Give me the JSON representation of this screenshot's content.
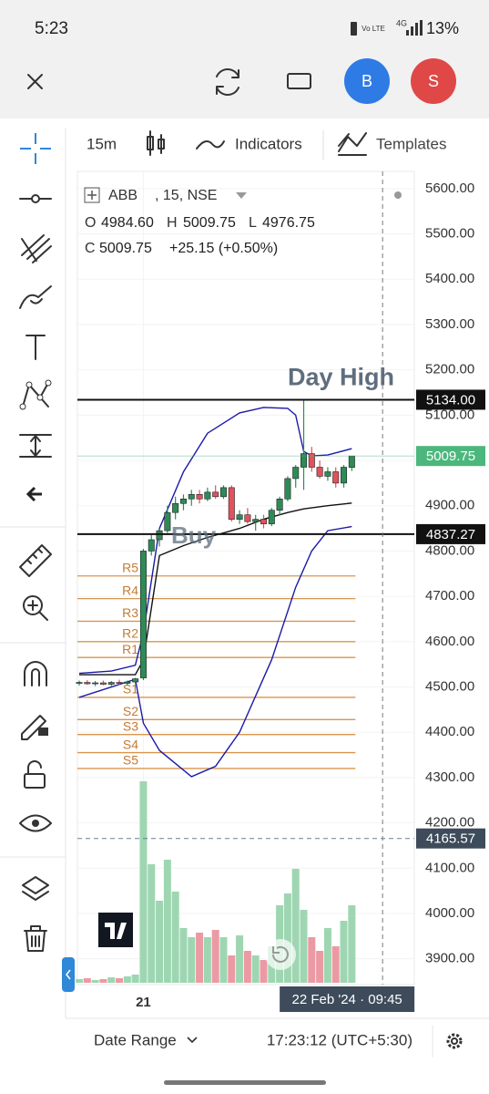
{
  "status_bar": {
    "time": "5:23",
    "volte": "Vo LTE",
    "network": "4G",
    "battery": "13%"
  },
  "top_bar": {
    "user_buttons": [
      "B",
      "S"
    ]
  },
  "toolbar": {
    "interval": "15m",
    "indicators": "Indicators",
    "templates": "Templates"
  },
  "bottom_bar": {
    "date_range": "Date Range",
    "clock": "17:23:12 (UTC+5:30)"
  },
  "chart_data": {
    "type": "candlestick",
    "symbol": "ABB",
    "interval_exchange": ", 15, NSE",
    "legend_ohlc": [
      {
        "key": "O",
        "text": "4984.60"
      },
      {
        "key": "H",
        "text": "5009.75"
      },
      {
        "key": "L",
        "text": "4976.75"
      },
      {
        "key": "C",
        "text": "5009.75"
      }
    ],
    "change": "+25.15 (+0.50%)",
    "xlim": [
      -0.23,
      41.8
    ],
    "ylim": [
      3843,
      5638
    ],
    "xticks": [
      {
        "value": 8,
        "label": "21"
      }
    ],
    "yticks": [
      {
        "value": 3900,
        "label": "3900.00"
      },
      {
        "value": 4000,
        "label": "4000.00"
      },
      {
        "value": 4100,
        "label": "4100.00"
      },
      {
        "value": 4200,
        "label": "4200.00"
      },
      {
        "value": 4300,
        "label": "4300.00"
      },
      {
        "value": 4400,
        "label": "4400.00"
      },
      {
        "value": 4500,
        "label": "4500.00"
      },
      {
        "value": 4600,
        "label": "4600.00"
      },
      {
        "value": 4700,
        "label": "4700.00"
      },
      {
        "value": 4800,
        "label": "4800.00"
      },
      {
        "value": 4900,
        "label": "4900.00"
      },
      {
        "value": 5000,
        "label": "5000.00"
      },
      {
        "value": 5100,
        "label": "5100.00"
      },
      {
        "value": 5200,
        "label": "5200.00"
      },
      {
        "value": 5300,
        "label": "5300.00"
      },
      {
        "value": 5400,
        "label": "5400.00"
      },
      {
        "value": 5500,
        "label": "5500.00"
      },
      {
        "value": 5600,
        "label": "5600.00"
      }
    ],
    "grid": true,
    "up_color": "#2e8b57",
    "down_color": "#e0525d",
    "volume_up_color": "#9ed6b2",
    "volume_down_color": "#eb9aa3",
    "candles": {
      "open": [
        4508,
        4510,
        4507,
        4509,
        4506,
        4510,
        4508,
        4511,
        4520,
        4800,
        4825,
        4845,
        4885,
        4905,
        4915,
        4925,
        4915,
        4930,
        4920,
        4940,
        4870,
        4880,
        4865,
        4870,
        4860,
        4890,
        4915,
        4960,
        4985,
        5015,
        4985,
        4965,
        4975,
        4950,
        4984.6
      ],
      "high": [
        4514,
        4515,
        4513,
        4514,
        4513,
        4516,
        4514,
        4520,
        4805,
        4835,
        4850,
        4900,
        4920,
        4925,
        4935,
        4935,
        4940,
        4945,
        4945,
        4945,
        4890,
        4895,
        4880,
        4880,
        4895,
        4920,
        4965,
        4990,
        5134,
        5030,
        5000,
        4985,
        4985,
        4990,
        5009.75
      ],
      "low": [
        4503,
        4505,
        4502,
        4504,
        4502,
        4505,
        4503,
        4506,
        4515,
        4790,
        4810,
        4840,
        4870,
        4890,
        4900,
        4905,
        4910,
        4915,
        4915,
        4865,
        4860,
        4860,
        4845,
        4850,
        4855,
        4880,
        4910,
        4940,
        4935,
        4975,
        4960,
        4955,
        4940,
        4940,
        4976.75
      ],
      "close": [
        4510,
        4507,
        4509,
        4506,
        4510,
        4508,
        4511,
        4518,
        4800,
        4825,
        4845,
        4885,
        4905,
        4915,
        4925,
        4915,
        4930,
        4920,
        4940,
        4870,
        4880,
        4865,
        4870,
        4860,
        4890,
        4915,
        4960,
        4985,
        5015,
        4985,
        4965,
        4975,
        4950,
        4985,
        5009.75
      ]
    },
    "volume": [
      4,
      5,
      3,
      4,
      6,
      5,
      7,
      9,
      221,
      130,
      90,
      135,
      100,
      60,
      50,
      55,
      50,
      58,
      50,
      30,
      52,
      35,
      30,
      25,
      40,
      85,
      98,
      125,
      80,
      50,
      35,
      60,
      40,
      68,
      85
    ],
    "bands": [
      {
        "name": "upper",
        "color": "#1a1aa8",
        "x": [
          0,
          4,
          7,
          8,
          10,
          13,
          16,
          20,
          23,
          26,
          27,
          28,
          29,
          31,
          34
        ],
        "values": [
          4530,
          4535,
          4548,
          4620,
          4850,
          4975,
          5060,
          5105,
          5117,
          5115,
          5100,
          5020,
          5010,
          5012,
          5026
        ]
      },
      {
        "name": "middle",
        "color": "#111111",
        "x": [
          0,
          7,
          8,
          10,
          13,
          16,
          20,
          23,
          26,
          28,
          31,
          34
        ],
        "values": [
          4527,
          4527,
          4560,
          4790,
          4812,
          4830,
          4850,
          4870,
          4885,
          4893,
          4900,
          4906
        ]
      },
      {
        "name": "lower",
        "color": "#1a1aa8",
        "x": [
          0,
          7,
          8,
          10,
          14,
          17,
          20,
          24,
          27,
          29,
          31,
          34
        ],
        "values": [
          4477,
          4517,
          4420,
          4360,
          4302,
          4325,
          4400,
          4560,
          4720,
          4800,
          4845,
          4854
        ]
      }
    ],
    "pivot_color": "#d9954e",
    "pivots": [
      {
        "label": "R5",
        "value": 4745
      },
      {
        "label": "R4",
        "value": 4695
      },
      {
        "label": "R3",
        "value": 4645
      },
      {
        "label": "R2",
        "value": 4600
      },
      {
        "label": "R1",
        "value": 4565
      },
      {
        "label": "S1",
        "value": 4477
      },
      {
        "label": "S2",
        "value": 4428
      },
      {
        "label": "S3",
        "value": 4395
      },
      {
        "label": "S4",
        "value": 4355
      },
      {
        "label": "S5",
        "value": 4320
      }
    ],
    "price_lines": [
      {
        "value": 5134,
        "label": "5134.00",
        "annotation": "Day High"
      },
      {
        "value": 4837.27,
        "label": "4837.27",
        "annotation": "Buy"
      }
    ],
    "last_price": {
      "value": 5009.75,
      "label": "5009.75",
      "color": "#4cb77c"
    },
    "crosshair": {
      "x": 37.84,
      "y": 4165.57,
      "x_label": "22 Feb '24 · 09:45",
      "y_label": "4165.57"
    }
  }
}
